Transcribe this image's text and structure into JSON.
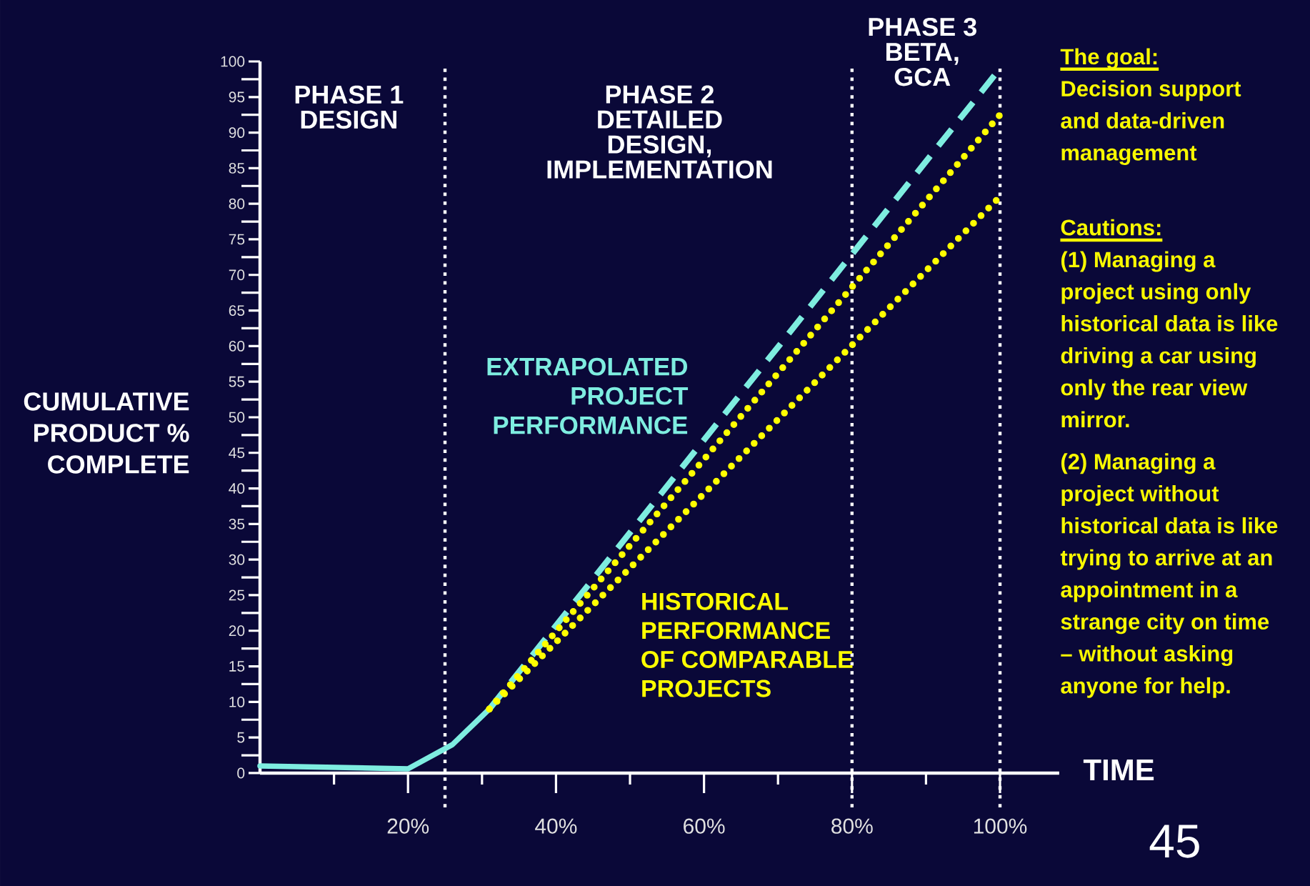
{
  "chart_data": {
    "type": "line",
    "xlabel": "TIME",
    "ylabel": "CUMULATIVE PRODUCT % COMPLETE",
    "xlim": [
      0,
      108
    ],
    "ylim": [
      0,
      100
    ],
    "xticks": [
      {
        "value": 10,
        "label": null
      },
      {
        "value": 20,
        "label": "20%"
      },
      {
        "value": 30,
        "label": null
      },
      {
        "value": 40,
        "label": "40%"
      },
      {
        "value": 50,
        "label": null
      },
      {
        "value": 60,
        "label": "60%"
      },
      {
        "value": 70,
        "label": null
      },
      {
        "value": 80,
        "label": "80%"
      },
      {
        "value": 90,
        "label": null
      },
      {
        "value": 100,
        "label": "100%"
      }
    ],
    "yticks": [
      0,
      {
        "value": 2.5,
        "label": null
      },
      5,
      {
        "value": 7.5,
        "label": null
      },
      10,
      {
        "value": 12.5,
        "label": null
      },
      15,
      {
        "value": 17.5,
        "label": null
      },
      20,
      {
        "value": 22.5,
        "label": null
      },
      25,
      {
        "value": 27.5,
        "label": null
      },
      30,
      {
        "value": 32.5,
        "label": null
      },
      35,
      {
        "value": 37.5,
        "label": null
      },
      40,
      {
        "value": 42.5,
        "label": null
      },
      45,
      {
        "value": 47.5,
        "label": null
      },
      50,
      {
        "value": 52.5,
        "label": null
      },
      55,
      {
        "value": 57.5,
        "label": null
      },
      60,
      {
        "value": 62.5,
        "label": null
      },
      65,
      {
        "value": 67.5,
        "label": null
      },
      70,
      {
        "value": 72.5,
        "label": null
      },
      75,
      {
        "value": 77.5,
        "label": null
      },
      80,
      {
        "value": 82.5,
        "label": null
      },
      85,
      {
        "value": 87.5,
        "label": null
      },
      90,
      {
        "value": 92.5,
        "label": null
      },
      95,
      {
        "value": 97.5,
        "label": null
      },
      100
    ],
    "marker": "none",
    "series": [
      {
        "color": "#7eede0",
        "line_style": "solid",
        "x": [
          0,
          20,
          26,
          31
        ],
        "values": [
          1,
          0.6,
          4,
          9
        ]
      },
      {
        "name": "EXTRAPOLATED PROJECT PERFORMANCE",
        "color": "#7eede0",
        "line_style": "dashed",
        "x": [
          31,
          100
        ],
        "values": [
          9,
          99
        ]
      },
      {
        "name": "HISTORICAL PERFORMANCE OF COMPARABLE PROJECTS",
        "color": "#ffff00",
        "line_style": "dotted",
        "x": [
          31,
          100
        ],
        "values": [
          9,
          92.5
        ]
      },
      {
        "color": "#ffff00",
        "line_style": "dotted",
        "x": [
          31,
          100
        ],
        "values": [
          9,
          81
        ]
      }
    ],
    "ref_lines": [
      {
        "axis": "x",
        "value": 25,
        "color": "#ffffff",
        "line_style": "dotted"
      },
      {
        "axis": "x",
        "value": 80,
        "color": "#ffffff",
        "line_style": "dotted"
      },
      {
        "axis": "x",
        "value": 100,
        "color": "#ffffff",
        "line_style": "dotted"
      }
    ],
    "annotations": [
      "PHASE 1 DESIGN",
      "PHASE 2 DETAILED DESIGN, IMPLEMENTATION",
      "PHASE 3 BETA, GCA",
      "The goal:",
      "Decision support and data-driven management",
      "Cautions:",
      "(1) Managing a project using only historical data is like driving a car using only the rear view mirror.",
      "(2) Managing a project without historical data is like trying to arrive at an appointment in a strange city on time – without asking anyone for help.",
      "45"
    ]
  }
}
